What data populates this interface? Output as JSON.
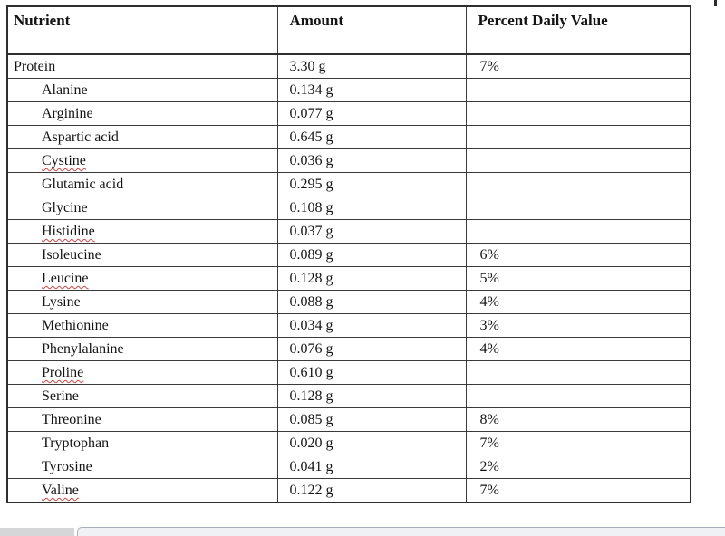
{
  "table": {
    "columns": [
      "Nutrient",
      "Amount",
      "Percent Daily Value"
    ],
    "rows": [
      {
        "nutrient": "Protein",
        "amount": "3.30 g",
        "percent": "7%",
        "indent": false,
        "misspelled": false
      },
      {
        "nutrient": "Alanine",
        "amount": "0.134 g",
        "percent": "",
        "indent": true,
        "misspelled": false
      },
      {
        "nutrient": "Arginine",
        "amount": "0.077 g",
        "percent": "",
        "indent": true,
        "misspelled": false
      },
      {
        "nutrient": "Aspartic acid",
        "amount": "0.645 g",
        "percent": "",
        "indent": true,
        "misspelled": false
      },
      {
        "nutrient": "Cystine",
        "amount": "0.036 g",
        "percent": "",
        "indent": true,
        "misspelled": true
      },
      {
        "nutrient": "Glutamic acid",
        "amount": "0.295 g",
        "percent": "",
        "indent": true,
        "misspelled": false
      },
      {
        "nutrient": "Glycine",
        "amount": "0.108 g",
        "percent": "",
        "indent": true,
        "misspelled": false
      },
      {
        "nutrient": "Histidine",
        "amount": "0.037 g",
        "percent": "",
        "indent": true,
        "misspelled": true
      },
      {
        "nutrient": "Isoleucine",
        "amount": "0.089 g",
        "percent": "6%",
        "indent": true,
        "misspelled": false
      },
      {
        "nutrient": "Leucine",
        "amount": "0.128 g",
        "percent": "5%",
        "indent": true,
        "misspelled": true
      },
      {
        "nutrient": "Lysine",
        "amount": "0.088 g",
        "percent": "4%",
        "indent": true,
        "misspelled": false
      },
      {
        "nutrient": "Methionine",
        "amount": "0.034 g",
        "percent": "3%",
        "indent": true,
        "misspelled": false
      },
      {
        "nutrient": "Phenylalanine",
        "amount": "0.076 g",
        "percent": "4%",
        "indent": true,
        "misspelled": false
      },
      {
        "nutrient": "Proline",
        "amount": "0.610 g",
        "percent": "",
        "indent": true,
        "misspelled": true
      },
      {
        "nutrient": "Serine",
        "amount": "0.128 g",
        "percent": "",
        "indent": true,
        "misspelled": false
      },
      {
        "nutrient": "Threonine",
        "amount": "0.085 g",
        "percent": "8%",
        "indent": true,
        "misspelled": false
      },
      {
        "nutrient": "Tryptophan",
        "amount": "0.020 g",
        "percent": "7%",
        "indent": true,
        "misspelled": false
      },
      {
        "nutrient": "Tyrosine",
        "amount": "0.041 g",
        "percent": "2%",
        "indent": true,
        "misspelled": false
      },
      {
        "nutrient": "Valine",
        "amount": "0.122 g",
        "percent": "7%",
        "indent": true,
        "misspelled": true
      }
    ]
  },
  "colors": {
    "table_border": "#3a3a3a",
    "spellcheck_squiggle": "#cc4444",
    "scrollbar_track": "#eff1f4",
    "scrollbar_corner": "#d5d6d8"
  }
}
